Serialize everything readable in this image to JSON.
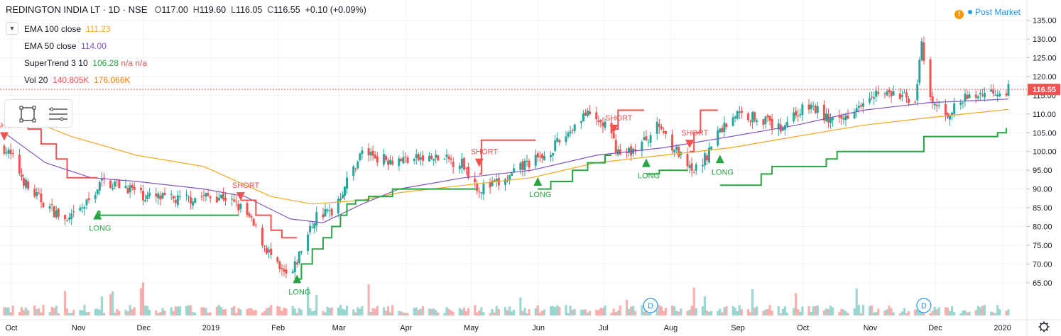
{
  "header": {
    "symbol": "REDINGTON INDIA LT · 1D · NSE",
    "open_label": "O",
    "open": "117.00",
    "high_label": "H",
    "high": "119.60",
    "low_label": "L",
    "low": "116.05",
    "close_label": "C",
    "close": "116.55",
    "change": "+0.10 (+0.09%)"
  },
  "indicators": [
    {
      "name": "EMA 100 close",
      "values": [
        "111.23"
      ],
      "color": "#f5a623"
    },
    {
      "name": "EMA 50 close",
      "values": [
        "114.00"
      ],
      "color": "#7e57c2"
    },
    {
      "name": "SuperTrend 3 10",
      "values": [
        "106.28",
        "n/a",
        "n/a"
      ],
      "value_colors": [
        "#26a641",
        "#ef5350",
        "#ef5350"
      ]
    },
    {
      "name": "Vol 20",
      "values": [
        "140.805K",
        "176.066K"
      ],
      "value_colors": [
        "#ef5350",
        "#f57c00"
      ]
    }
  ],
  "post_market": {
    "label": "Post Market",
    "alert_glyph": "!"
  },
  "toolbar": {
    "rect_tool_icon": "rectangle-icon",
    "menu_icon": "lines-icon"
  },
  "chart_data": {
    "type": "candlestick",
    "title": "REDINGTON INDIA LT · 1D · NSE",
    "y_axis": {
      "ticks": [
        65.0,
        70.0,
        75.0,
        80.0,
        85.0,
        90.0,
        95.0,
        100.0,
        105.0,
        110.0,
        115.0,
        120.0,
        125.0,
        130.0,
        135.0
      ],
      "range": [
        61,
        137
      ],
      "side": "right"
    },
    "x_axis": {
      "labels": [
        "Oct",
        "Nov",
        "Dec",
        "2019",
        "Feb",
        "Mar",
        "Apr",
        "May",
        "Jun",
        "Jul",
        "Aug",
        "Sep",
        "Oct",
        "Nov",
        "Dec",
        "2020"
      ],
      "range": [
        "2018-10-01",
        "2020-01-07"
      ]
    },
    "last_price": 116.55,
    "price_path": [
      [
        "2018-10-01",
        101
      ],
      [
        "2018-10-05",
        98
      ],
      [
        "2018-10-12",
        90
      ],
      [
        "2018-10-20",
        86
      ],
      [
        "2018-10-30",
        81
      ],
      [
        "2018-11-08",
        86
      ],
      [
        "2018-11-15",
        92
      ],
      [
        "2018-11-25",
        91
      ],
      [
        "2018-12-05",
        88
      ],
      [
        "2018-12-20",
        87
      ],
      [
        "2019-01-01",
        88
      ],
      [
        "2019-01-10",
        88
      ],
      [
        "2019-01-20",
        84
      ],
      [
        "2019-01-28",
        76
      ],
      [
        "2019-02-05",
        68
      ],
      [
        "2019-02-10",
        66
      ],
      [
        "2019-02-15",
        74
      ],
      [
        "2019-02-22",
        83
      ],
      [
        "2019-03-01",
        84
      ],
      [
        "2019-03-08",
        92
      ],
      [
        "2019-03-15",
        100
      ],
      [
        "2019-03-25",
        98
      ],
      [
        "2019-04-05",
        98
      ],
      [
        "2019-04-20",
        98
      ],
      [
        "2019-04-30",
        97
      ],
      [
        "2019-05-08",
        90
      ],
      [
        "2019-05-20",
        92
      ],
      [
        "2019-05-30",
        97
      ],
      [
        "2019-06-05",
        98
      ],
      [
        "2019-06-15",
        103
      ],
      [
        "2019-06-25",
        110
      ],
      [
        "2019-07-05",
        107
      ],
      [
        "2019-07-12",
        99
      ],
      [
        "2019-07-20",
        101
      ],
      [
        "2019-07-30",
        107
      ],
      [
        "2019-08-06",
        101
      ],
      [
        "2019-08-14",
        94
      ],
      [
        "2019-08-20",
        98
      ],
      [
        "2019-08-26",
        105
      ],
      [
        "2019-09-03",
        110
      ],
      [
        "2019-09-15",
        109
      ],
      [
        "2019-09-23",
        106
      ],
      [
        "2019-09-30",
        110
      ],
      [
        "2019-10-08",
        112
      ],
      [
        "2019-10-20",
        107
      ],
      [
        "2019-10-28",
        112
      ],
      [
        "2019-11-05",
        116
      ],
      [
        "2019-11-15",
        115
      ],
      [
        "2019-11-25",
        114
      ],
      [
        "2019-11-28",
        128
      ],
      [
        "2019-12-02",
        113
      ],
      [
        "2019-12-10",
        110
      ],
      [
        "2019-12-18",
        114
      ],
      [
        "2019-12-28",
        116
      ],
      [
        "2020-01-07",
        116.55
      ]
    ],
    "supertrend_long_segments": [
      [
        [
          "2018-11-13",
          84
        ],
        [
          "2018-11-14",
          83
        ],
        [
          "2019-01-12",
          83
        ],
        [
          "2019-01-17",
          83
        ]
      ],
      [
        [
          "2019-02-13",
          66
        ],
        [
          "2019-02-15",
          70
        ],
        [
          "2019-02-20",
          74
        ],
        [
          "2019-02-25",
          77
        ],
        [
          "2019-03-01",
          80
        ],
        [
          "2019-03-05",
          83
        ],
        [
          "2019-03-08",
          86
        ],
        [
          "2019-03-12",
          87
        ],
        [
          "2019-03-18",
          88
        ],
        [
          "2019-03-25",
          88
        ],
        [
          "2019-03-29",
          90
        ],
        [
          "2019-05-07",
          90
        ]
      ],
      [
        [
          "2019-06-04",
          90
        ],
        [
          "2019-06-10",
          92
        ],
        [
          "2019-06-20",
          95
        ],
        [
          "2019-06-27",
          97
        ],
        [
          "2019-07-05",
          99
        ],
        [
          "2019-07-08",
          99
        ]
      ],
      [
        [
          "2019-07-24",
          94
        ],
        [
          "2019-07-30",
          95
        ],
        [
          "2019-08-12",
          95
        ]
      ],
      [
        [
          "2019-08-27",
          91
        ],
        [
          "2019-09-10",
          91
        ],
        [
          "2019-09-15",
          94
        ],
        [
          "2019-09-20",
          96
        ],
        [
          "2019-10-10",
          96
        ],
        [
          "2019-10-15",
          98
        ],
        [
          "2019-10-20",
          100
        ],
        [
          "2019-11-25",
          100
        ],
        [
          "2019-11-29",
          104
        ],
        [
          "2019-12-30",
          104
        ],
        [
          "2020-01-02",
          105
        ],
        [
          "2020-01-06",
          106.28
        ]
      ]
    ],
    "supertrend_short_segments": [
      [
        [
          "2018-10-01",
          109
        ],
        [
          "2018-10-05",
          109
        ],
        [
          "2018-10-12",
          106
        ],
        [
          "2018-10-18",
          102
        ],
        [
          "2018-10-25",
          98
        ],
        [
          "2018-10-30",
          93
        ],
        [
          "2018-11-13",
          93
        ]
      ],
      [
        [
          "2019-01-18",
          87
        ],
        [
          "2019-01-25",
          83
        ],
        [
          "2019-02-01",
          79
        ],
        [
          "2019-02-06",
          77
        ],
        [
          "2019-02-13",
          77
        ]
      ],
      [
        [
          "2019-05-08",
          94
        ],
        [
          "2019-05-09",
          103
        ],
        [
          "2019-06-03",
          103
        ]
      ],
      [
        [
          "2019-07-09",
          106
        ],
        [
          "2019-07-11",
          111
        ],
        [
          "2019-07-23",
          111
        ]
      ],
      [
        [
          "2019-08-13",
          100
        ],
        [
          "2019-08-15",
          105
        ],
        [
          "2019-08-18",
          111
        ],
        [
          "2019-08-26",
          111
        ]
      ]
    ],
    "signals": [
      {
        "type": "short",
        "date": "2018-10-01",
        "price": 104,
        "label": "SHORT"
      },
      {
        "type": "long",
        "date": "2018-11-13",
        "price": 83,
        "label": "LONG"
      },
      {
        "type": "short",
        "date": "2019-01-18",
        "price": 88,
        "label": "SHORT"
      },
      {
        "type": "long",
        "date": "2019-02-13",
        "price": 66,
        "label": "LONG"
      },
      {
        "type": "short",
        "date": "2019-05-08",
        "price": 97,
        "label": "SHORT"
      },
      {
        "type": "long",
        "date": "2019-06-04",
        "price": 92,
        "label": "LONG"
      },
      {
        "type": "short",
        "date": "2019-07-09",
        "price": 106,
        "label": "SHORT"
      },
      {
        "type": "long",
        "date": "2019-07-24",
        "price": 97,
        "label": "LONG"
      },
      {
        "type": "short",
        "date": "2019-08-13",
        "price": 102,
        "label": "SHORT"
      },
      {
        "type": "long",
        "date": "2019-08-27",
        "price": 98,
        "label": "LONG"
      }
    ],
    "ema100_path": [
      [
        "2018-10-01",
        111
      ],
      [
        "2018-11-01",
        104
      ],
      [
        "2018-12-01",
        99
      ],
      [
        "2019-01-01",
        96
      ],
      [
        "2019-02-01",
        88
      ],
      [
        "2019-02-20",
        86
      ],
      [
        "2019-03-15",
        87
      ],
      [
        "2019-04-01",
        89
      ],
      [
        "2019-05-01",
        91
      ],
      [
        "2019-06-01",
        93
      ],
      [
        "2019-07-01",
        97
      ],
      [
        "2019-08-01",
        99
      ],
      [
        "2019-09-01",
        101
      ],
      [
        "2019-10-01",
        104
      ],
      [
        "2019-11-01",
        107
      ],
      [
        "2019-12-01",
        109
      ],
      [
        "2020-01-07",
        111.23
      ]
    ],
    "ema50_path": [
      [
        "2018-10-01",
        105
      ],
      [
        "2018-10-20",
        97
      ],
      [
        "2018-11-10",
        93
      ],
      [
        "2018-12-01",
        92
      ],
      [
        "2019-01-01",
        90
      ],
      [
        "2019-01-20",
        88
      ],
      [
        "2019-02-10",
        82
      ],
      [
        "2019-02-25",
        81
      ],
      [
        "2019-03-15",
        86
      ],
      [
        "2019-04-01",
        90
      ],
      [
        "2019-05-01",
        93
      ],
      [
        "2019-06-01",
        95
      ],
      [
        "2019-07-01",
        99
      ],
      [
        "2019-08-01",
        101
      ],
      [
        "2019-09-01",
        104
      ],
      [
        "2019-10-01",
        107
      ],
      [
        "2019-11-01",
        111
      ],
      [
        "2019-12-01",
        113
      ],
      [
        "2020-01-07",
        114.0
      ]
    ],
    "dividend_markers": [
      {
        "date": "2019-07-26",
        "label": "D"
      },
      {
        "date": "2019-11-29",
        "label": "D"
      }
    ],
    "colors": {
      "up": "#26a69a",
      "down": "#ef5350",
      "ema100": "#f5a623",
      "ema50": "#7e57c2",
      "st_long": "#26a641",
      "st_short": "#ef5350",
      "last_price": "#ef5350"
    }
  }
}
